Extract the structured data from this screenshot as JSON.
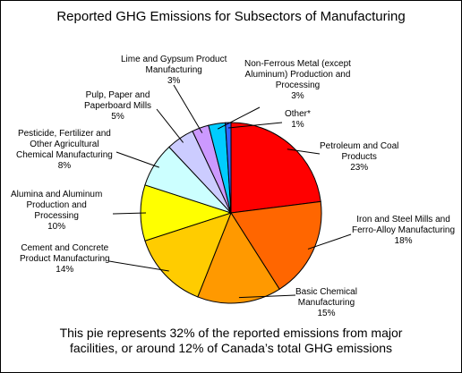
{
  "chart_data": {
    "type": "pie",
    "title": "Reported GHG Emissions for Subsectors of Manufacturing",
    "start_angle_deg": 90,
    "direction": "clockwise",
    "slices": [
      {
        "lines": [
          "Petroleum and Coal",
          "Products"
        ],
        "value": 23,
        "value_label": "23%",
        "color": "#ff0000"
      },
      {
        "lines": [
          "Iron and Steel Mills and",
          "Ferro-Alloy Manufacturing"
        ],
        "value": 18,
        "value_label": "18%",
        "color": "#ff6600"
      },
      {
        "lines": [
          "Basic Chemical",
          "Manufacturing"
        ],
        "value": 15,
        "value_label": "15%",
        "color": "#ff9900"
      },
      {
        "lines": [
          "Cement and Concrete",
          "Product Manufacturing"
        ],
        "value": 14,
        "value_label": "14%",
        "color": "#ffcc00"
      },
      {
        "lines": [
          "Alumina and Aluminum",
          "Production and",
          "Processing"
        ],
        "value": 10,
        "value_label": "10%",
        "color": "#ffff00"
      },
      {
        "lines": [
          "Pesticide, Fertilizer and",
          "Other Agricultural",
          "Chemical Manufacturing"
        ],
        "value": 8,
        "value_label": "8%",
        "color": "#ccffff"
      },
      {
        "lines": [
          "Pulp, Paper and",
          "Paperboard Mills"
        ],
        "value": 5,
        "value_label": "5%",
        "color": "#ccccff"
      },
      {
        "lines": [
          "Lime and Gypsum Product",
          "Manufacturing"
        ],
        "value": 3,
        "value_label": "3%",
        "color": "#cc99ff"
      },
      {
        "lines": [
          "Non-Ferrous Metal (except",
          "Aluminum) Production and",
          "Processing"
        ],
        "value": 3,
        "value_label": "3%",
        "color": "#00ccff"
      },
      {
        "lines": [
          "Other*"
        ],
        "value": 1,
        "value_label": "1%",
        "color": "#3366ff"
      }
    ]
  },
  "footnote": {
    "line1": "This pie represents 32% of the reported emissions from major",
    "line2": "facilities, or around 12% of Canada’s total GHG emissions"
  }
}
